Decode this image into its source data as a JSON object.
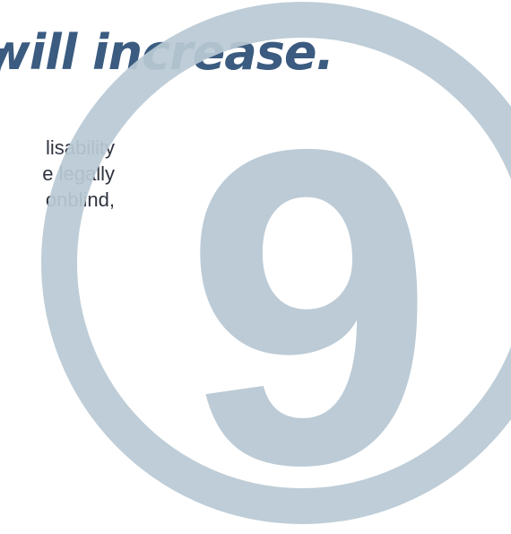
{
  "headline": {
    "visible_text": "will increase."
  },
  "body": {
    "lines": [
      "lisability",
      "e legally",
      "onblind,"
    ]
  },
  "badge": {
    "number": "9",
    "color": "#b9c9d4"
  },
  "colors": {
    "headline": "#3b5b80",
    "body_text": "#2f3440",
    "background": "#ffffff"
  }
}
